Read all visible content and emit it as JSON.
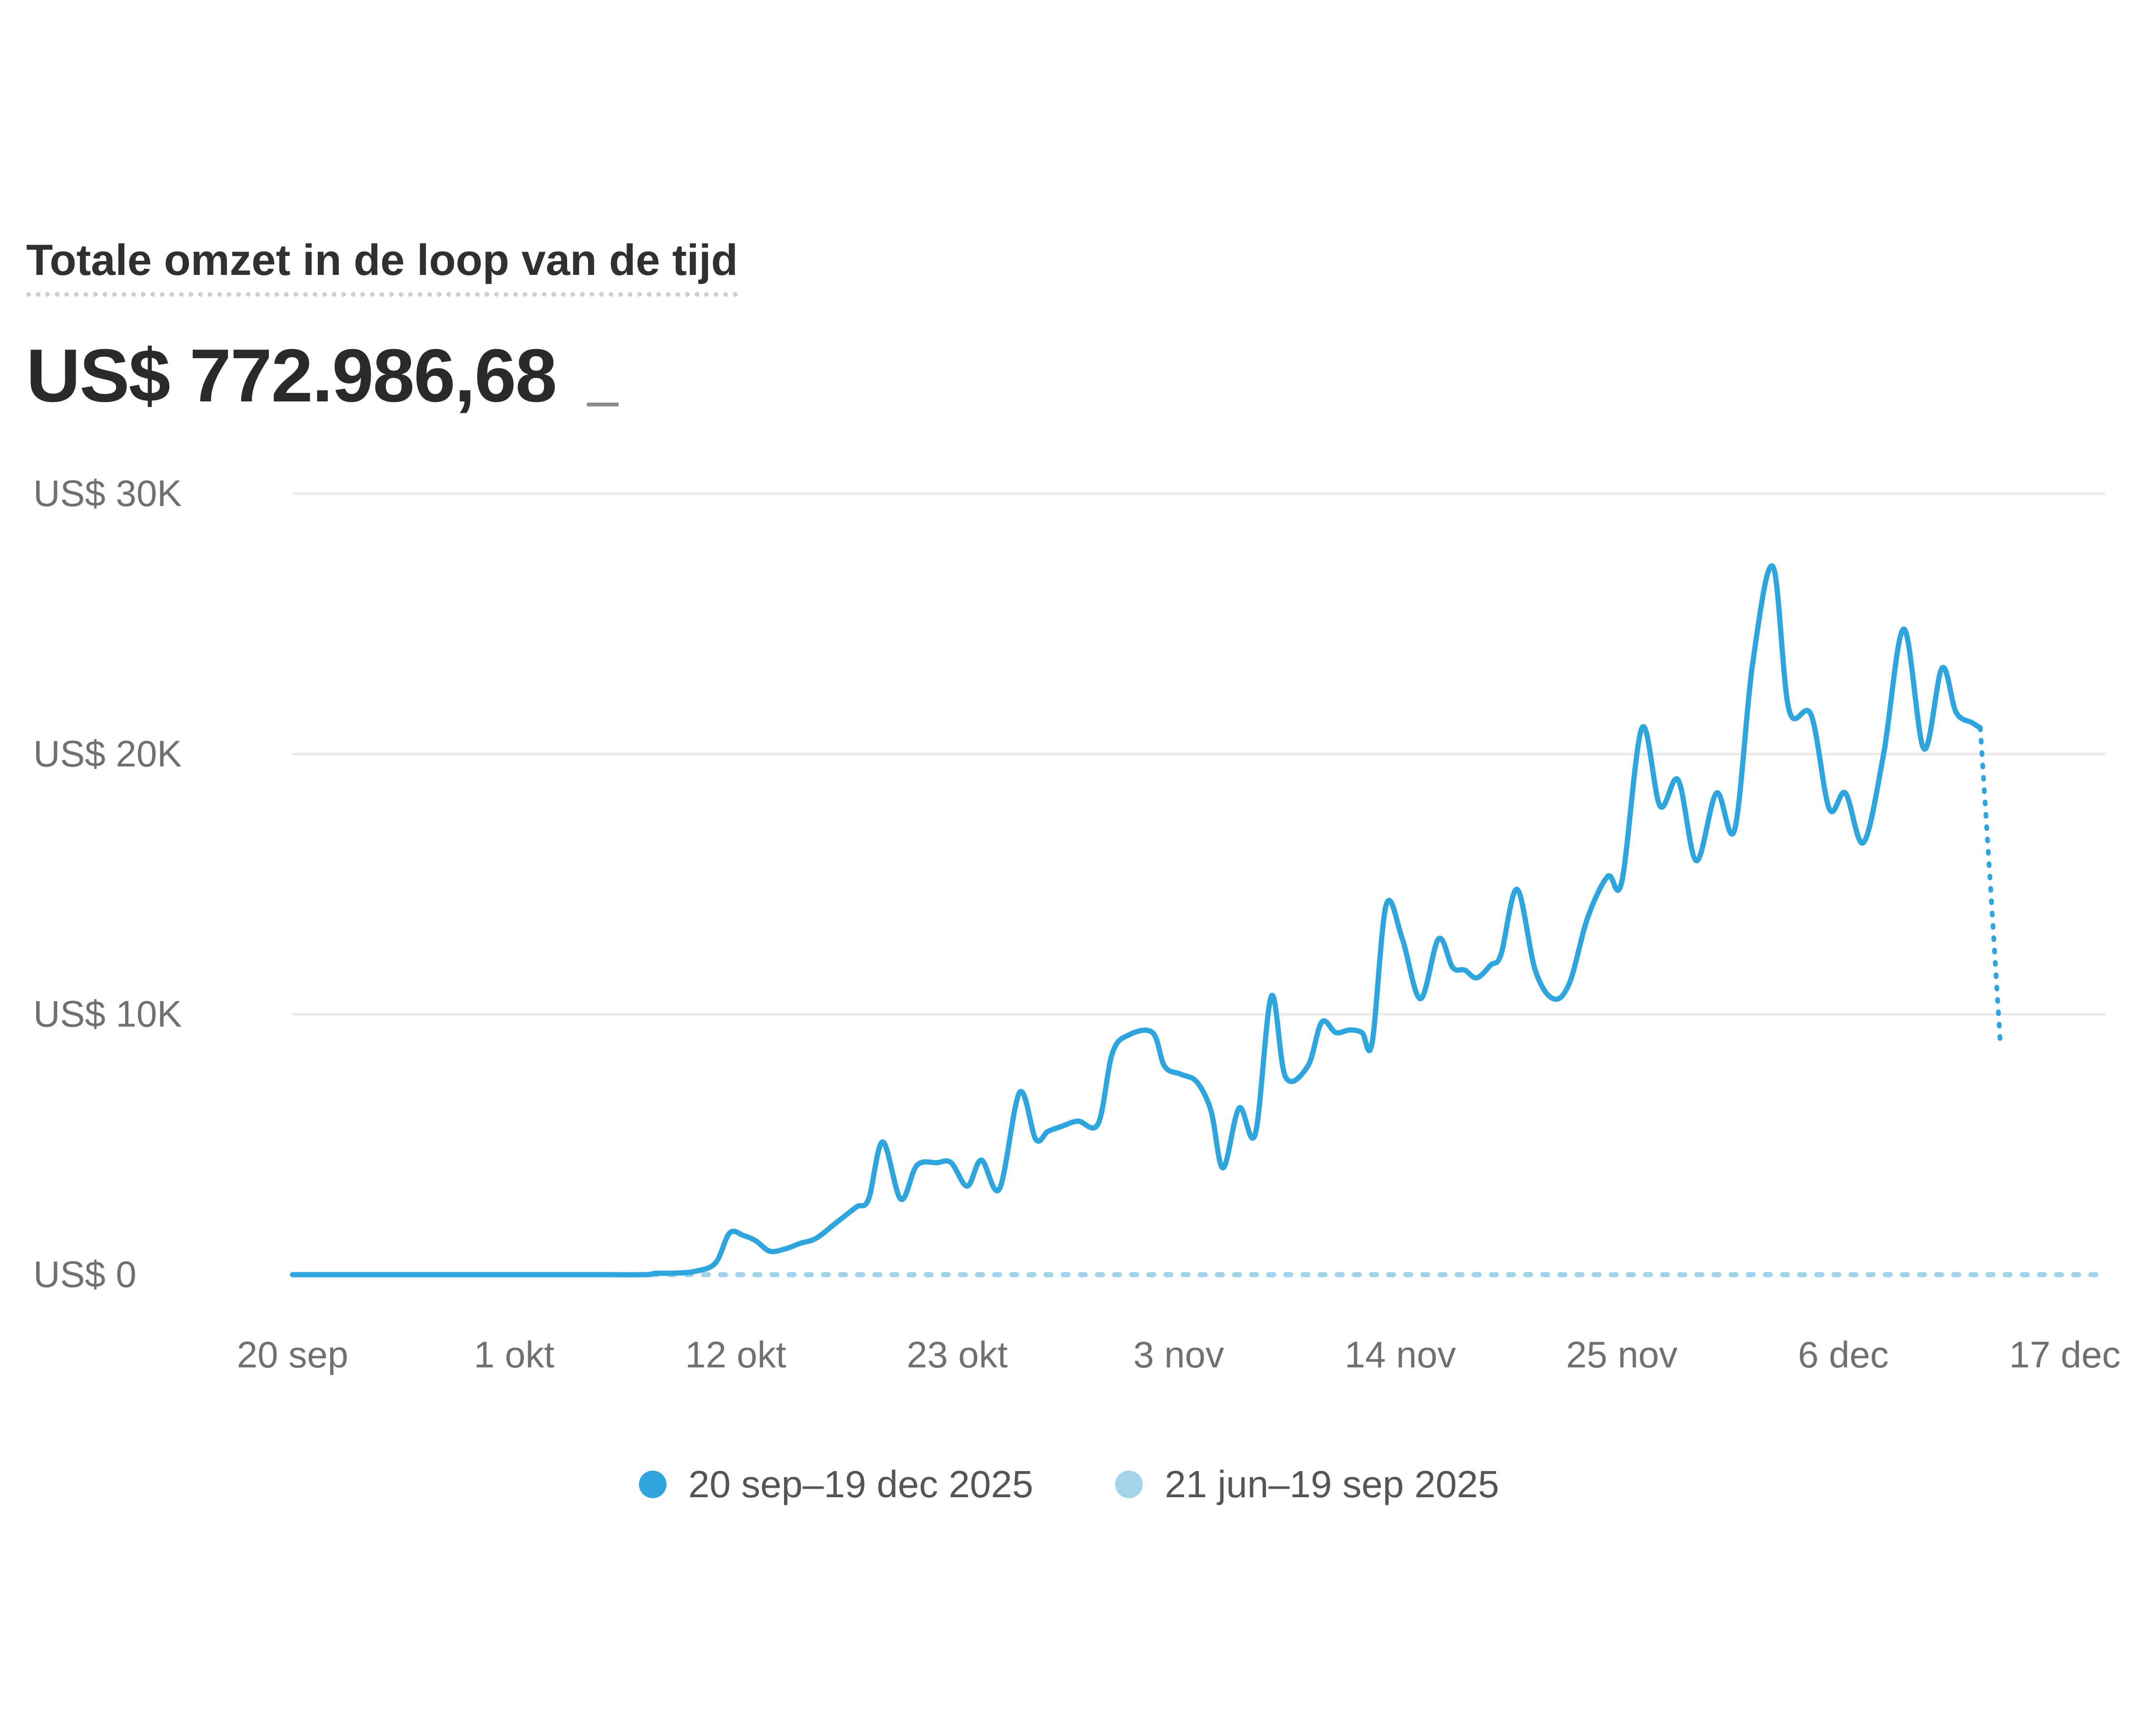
{
  "header": {
    "title": "Totale omzet in de loop van de tijd",
    "total": "US$ 772.986,68",
    "change": "–"
  },
  "chart_data": {
    "type": "line",
    "title": "Totale omzet in de loop van de tijd",
    "xlabel": "",
    "ylabel": "",
    "yticks": [
      {
        "value": 0,
        "label": "US$ 0"
      },
      {
        "value": 10000,
        "label": "US$ 10K"
      },
      {
        "value": 20000,
        "label": "US$ 20K"
      },
      {
        "value": 30000,
        "label": "US$ 30K"
      }
    ],
    "xticks": [
      {
        "day": 0,
        "label": "20 sep"
      },
      {
        "day": 11,
        "label": "1 okt"
      },
      {
        "day": 22,
        "label": "12 okt"
      },
      {
        "day": 33,
        "label": "23 okt"
      },
      {
        "day": 44,
        "label": "3 nov"
      },
      {
        "day": 55,
        "label": "14 nov"
      },
      {
        "day": 66,
        "label": "25 nov"
      },
      {
        "day": 77,
        "label": "6 dec"
      },
      {
        "day": 88,
        "label": "17 dec"
      }
    ],
    "ylim": [
      0,
      30000
    ],
    "xlim": [
      0,
      90
    ],
    "grid": true,
    "legend_position": "bottom",
    "colors": {
      "current": "#2ea6dd",
      "previous": "#a3d3eb",
      "grid": "#e9e9e9"
    },
    "series": [
      {
        "name": "20 sep–19 dec 2025",
        "points": [
          [
            0,
            0
          ],
          [
            3,
            0
          ],
          [
            6,
            0
          ],
          [
            9,
            0
          ],
          [
            12,
            0
          ],
          [
            15,
            0
          ],
          [
            17.5,
            0
          ],
          [
            18,
            50
          ],
          [
            19,
            60
          ],
          [
            20,
            130
          ],
          [
            21,
            450
          ],
          [
            21.7,
            1600
          ],
          [
            22.4,
            1500
          ],
          [
            23,
            1300
          ],
          [
            23.7,
            900
          ],
          [
            24.5,
            1000
          ],
          [
            25.2,
            1200
          ],
          [
            26,
            1400
          ],
          [
            27,
            2000
          ],
          [
            28,
            2600
          ],
          [
            28.6,
            2900
          ],
          [
            29.3,
            5100
          ],
          [
            30.2,
            2900
          ],
          [
            31,
            4200
          ],
          [
            32,
            4300
          ],
          [
            32.7,
            4300
          ],
          [
            33.5,
            3400
          ],
          [
            34.2,
            4400
          ],
          [
            35.1,
            3300
          ],
          [
            36.1,
            7000
          ],
          [
            36.9,
            5200
          ],
          [
            37.5,
            5500
          ],
          [
            38.2,
            5700
          ],
          [
            39,
            5900
          ],
          [
            40,
            5800
          ],
          [
            40.7,
            8500
          ],
          [
            41.5,
            9200
          ],
          [
            42.7,
            9300
          ],
          [
            43.3,
            8000
          ],
          [
            44.1,
            7700
          ],
          [
            44.9,
            7400
          ],
          [
            45.6,
            6300
          ],
          [
            46.2,
            4100
          ],
          [
            47,
            6400
          ],
          [
            47.8,
            5400
          ],
          [
            48.6,
            10700
          ],
          [
            49.3,
            7600
          ],
          [
            50.4,
            8000
          ],
          [
            51.1,
            9700
          ],
          [
            51.8,
            9300
          ],
          [
            52.5,
            9400
          ],
          [
            53.1,
            9300
          ],
          [
            53.6,
            8900
          ],
          [
            54.3,
            14200
          ],
          [
            55.1,
            12900
          ],
          [
            56,
            10600
          ],
          [
            56.9,
            12900
          ],
          [
            57.6,
            11800
          ],
          [
            58.2,
            11700
          ],
          [
            58.8,
            11400
          ],
          [
            59.5,
            11900
          ],
          [
            60,
            12300
          ],
          [
            60.8,
            14800
          ],
          [
            61.7,
            11700
          ],
          [
            62.6,
            10600
          ],
          [
            63.4,
            11200
          ],
          [
            64.3,
            13700
          ],
          [
            65.3,
            15300
          ],
          [
            66,
            15100
          ],
          [
            67,
            21000
          ],
          [
            67.9,
            18000
          ],
          [
            68.8,
            19000
          ],
          [
            69.7,
            15900
          ],
          [
            70.7,
            18500
          ],
          [
            71.6,
            17100
          ],
          [
            72.5,
            23500
          ],
          [
            73.5,
            27200
          ],
          [
            74.3,
            21700
          ],
          [
            75.4,
            21500
          ],
          [
            76.3,
            17900
          ],
          [
            77.1,
            18500
          ],
          [
            78,
            16600
          ],
          [
            79,
            20000
          ],
          [
            80,
            24800
          ],
          [
            81,
            20200
          ],
          [
            81.9,
            23300
          ],
          [
            82.6,
            21600
          ],
          [
            83.4,
            21200
          ],
          [
            83.8,
            21000
          ]
        ]
      },
      {
        "name": "21 jun–19 sep 2025",
        "points": [
          [
            0,
            0
          ],
          [
            90,
            0
          ]
        ]
      }
    ],
    "incomplete_segment": [
      [
        83.8,
        21000
      ],
      [
        84.3,
        15000
      ],
      [
        84.8,
        8800
      ]
    ]
  }
}
